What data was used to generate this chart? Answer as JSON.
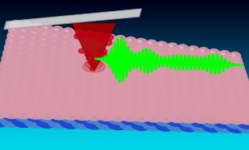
{
  "bg_top": "#000a18",
  "bg_mid": "#1a4a6a",
  "bg_bottom": "#00c8e0",
  "blade_color": "#d8d8d8",
  "blade_edge": "#999999",
  "cone_color": "#aa0000",
  "cone_dark": "#660000",
  "pink_atom": "#d898a8",
  "blue_dark": "#2244cc",
  "blue_light": "#4488cc",
  "cyan_atom": "#40aacc",
  "green_line": "#00ff00",
  "green_lw": 2.0,
  "figsize": [
    3.13,
    1.89
  ],
  "dpi": 100
}
